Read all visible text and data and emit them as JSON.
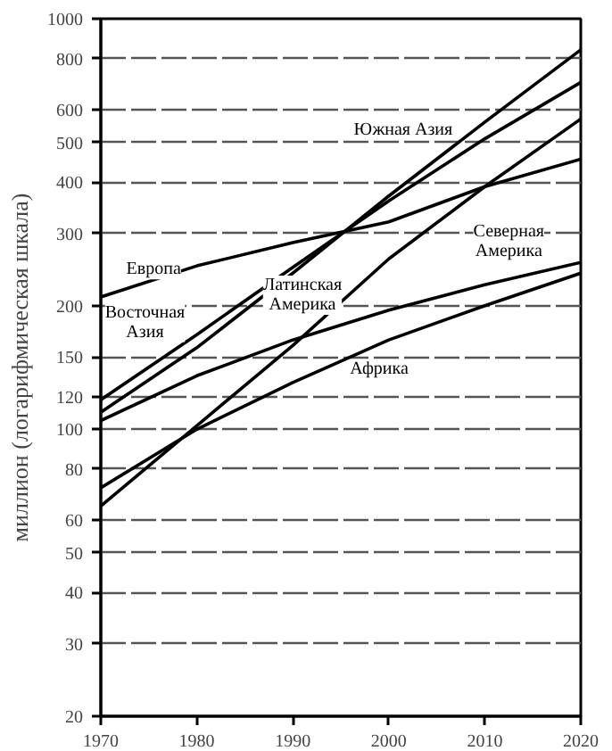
{
  "chart_data": {
    "type": "line",
    "ylabel": "миллион (логарифмическая шкала)",
    "log": "y",
    "grid": "y",
    "legend": false,
    "marker": "none",
    "line_style": "solid",
    "x": [
      1970,
      1980,
      1990,
      2000,
      2010,
      2020
    ],
    "xlim": [
      1970,
      2020
    ],
    "xticks": [
      1970,
      1980,
      1990,
      2000,
      2010,
      2020
    ],
    "ylim": [
      20,
      1000
    ],
    "yticks": [
      20,
      30,
      40,
      50,
      60,
      80,
      100,
      120,
      150,
      200,
      300,
      400,
      500,
      600,
      800,
      1000
    ],
    "series": [
      {
        "name": "Европа",
        "color": "#000000",
        "values": [
          210,
          250,
          285,
          320,
          390,
          455
        ]
      },
      {
        "name": "Восточная\nАзия",
        "color": "#000000",
        "values": [
          118,
          170,
          248,
          360,
          510,
          700
        ]
      },
      {
        "name": "Южная Азия",
        "color": "#000000",
        "values": [
          110,
          158,
          240,
          370,
          560,
          840
        ]
      },
      {
        "name": "Латинская\nАмерика",
        "color": "#000000",
        "values": [
          65,
          102,
          160,
          260,
          390,
          570
        ]
      },
      {
        "name": "Северная\nАмерика",
        "color": "#000000",
        "values": [
          105,
          135,
          165,
          195,
          225,
          255
        ]
      },
      {
        "name": "Африка",
        "color": "#000000",
        "values": [
          72,
          100,
          130,
          165,
          200,
          240
        ]
      }
    ]
  }
}
